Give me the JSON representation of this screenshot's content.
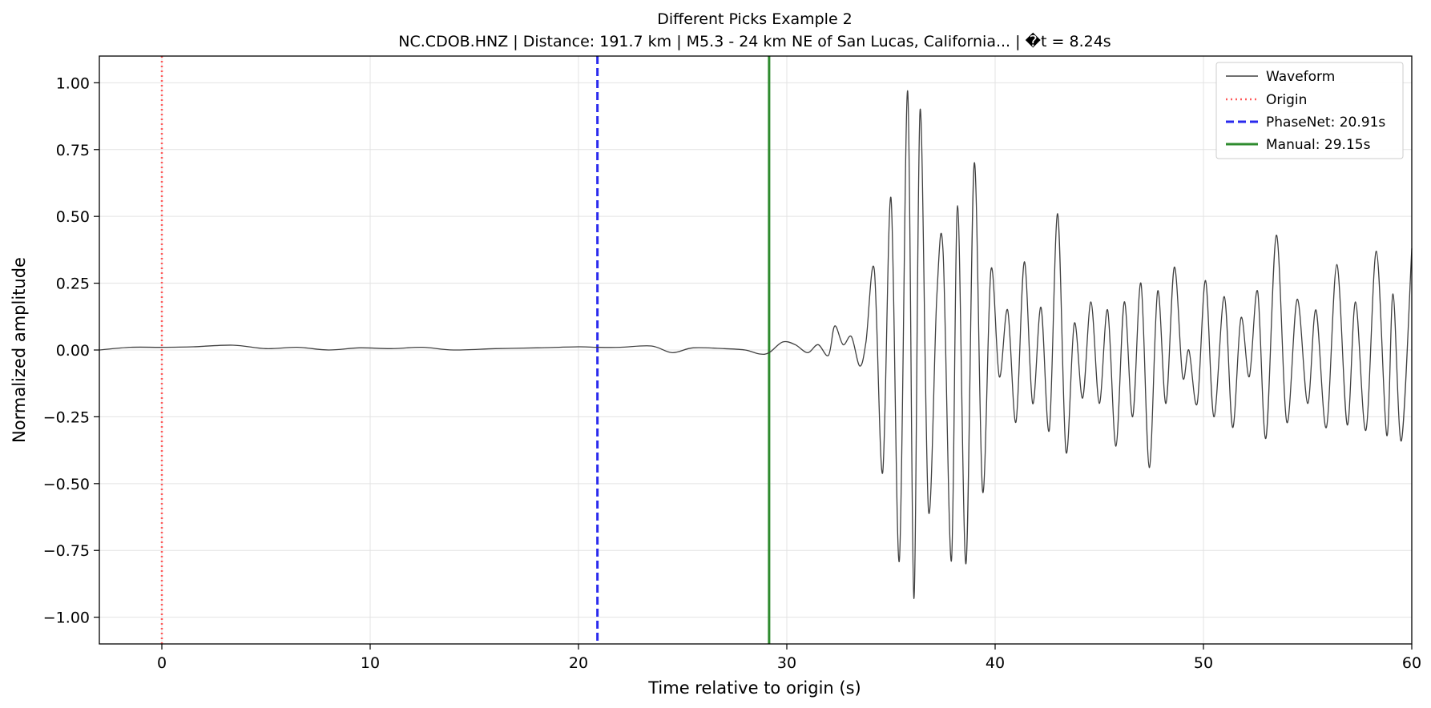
{
  "chart_data": {
    "type": "line",
    "title": "Different Picks Example 2",
    "subtitle": "NC.CDOB.HNZ | Distance: 191.7 km | M5.3 - 24 km NE of San Lucas, California... | �t = 8.24s",
    "xlabel": "Time relative to origin (s)",
    "ylabel": "Normalized amplitude",
    "xlim": [
      -3,
      60
    ],
    "ylim": [
      -1.1,
      1.1
    ],
    "x_ticks": [
      0,
      10,
      20,
      30,
      40,
      50,
      60
    ],
    "x_tick_labels": [
      "0",
      "10",
      "20",
      "30",
      "40",
      "50",
      "60"
    ],
    "y_ticks": [
      1.0,
      0.75,
      0.5,
      0.25,
      0.0,
      -0.25,
      -0.5,
      -0.75,
      -1.0
    ],
    "y_tick_labels": [
      "1.00",
      "0.75",
      "0.50",
      "0.25",
      "0.00",
      "−0.25",
      "−0.50",
      "−0.75",
      "−1.00"
    ],
    "grid": true,
    "legend_position": "top-right",
    "series": [
      {
        "name": "Waveform",
        "color": "#404040",
        "style": "solid",
        "x": [
          -3,
          -1.5,
          0,
          1.5,
          3.4,
          5,
          6.5,
          8,
          9.5,
          11,
          12.5,
          14,
          16,
          18,
          20,
          20.91,
          22,
          23.5,
          24.5,
          25.5,
          27,
          28,
          28.7,
          29.15,
          29.8,
          30.4,
          31,
          31.5,
          32,
          32.3,
          32.7,
          33.1,
          33.5,
          33.8,
          34.2,
          34.6,
          35.0,
          35.4,
          35.8,
          36.1,
          36.4,
          36.8,
          37.2,
          37.5,
          37.9,
          38.2,
          38.6,
          39.0,
          39.4,
          39.8,
          40.2,
          40.6,
          41.0,
          41.4,
          41.8,
          42.2,
          42.6,
          43.0,
          43.4,
          43.8,
          44.2,
          44.6,
          45.0,
          45.4,
          45.8,
          46.2,
          46.6,
          47.0,
          47.4,
          47.8,
          48.2,
          48.6,
          49.0,
          49.3,
          49.7,
          50.1,
          50.5,
          51.0,
          51.4,
          51.8,
          52.2,
          52.6,
          53.0,
          53.5,
          54.0,
          54.5,
          55.0,
          55.4,
          55.9,
          56.4,
          56.9,
          57.3,
          57.8,
          58.3,
          58.8,
          59.1,
          59.5,
          60.0
        ],
        "y": [
          0.0,
          0.01,
          0.01,
          0.012,
          0.018,
          0.005,
          0.01,
          0.0,
          0.008,
          0.005,
          0.01,
          0.0,
          0.005,
          0.008,
          0.012,
          0.01,
          0.01,
          0.015,
          -0.01,
          0.008,
          0.005,
          0.0,
          -0.015,
          -0.01,
          0.03,
          0.02,
          -0.01,
          0.02,
          -0.02,
          0.09,
          0.02,
          0.05,
          -0.06,
          0.03,
          0.3,
          -0.46,
          0.57,
          -0.79,
          0.97,
          -0.93,
          0.9,
          -0.6,
          0.2,
          0.37,
          -0.79,
          0.54,
          -0.8,
          0.7,
          -0.53,
          0.3,
          -0.1,
          0.15,
          -0.27,
          0.33,
          -0.2,
          0.16,
          -0.3,
          0.51,
          -0.38,
          0.1,
          -0.18,
          0.18,
          -0.2,
          0.15,
          -0.36,
          0.18,
          -0.25,
          0.25,
          -0.44,
          0.22,
          -0.2,
          0.31,
          -0.1,
          0.0,
          -0.2,
          0.26,
          -0.25,
          0.2,
          -0.29,
          0.12,
          -0.1,
          0.22,
          -0.33,
          0.43,
          -0.27,
          0.19,
          -0.2,
          0.15,
          -0.29,
          0.32,
          -0.28,
          0.18,
          -0.3,
          0.37,
          -0.32,
          0.21,
          -0.34,
          0.38
        ]
      }
    ],
    "markers": [
      {
        "name": "Origin",
        "x": 0,
        "color": "#ff5a5a",
        "style": "dotted"
      },
      {
        "name": "PhaseNet: 20.91s",
        "x": 20.91,
        "color": "#2a2aee",
        "style": "dashed"
      },
      {
        "name": "Manual: 29.15s",
        "x": 29.15,
        "color": "#2e8b2e",
        "style": "solid"
      }
    ]
  }
}
